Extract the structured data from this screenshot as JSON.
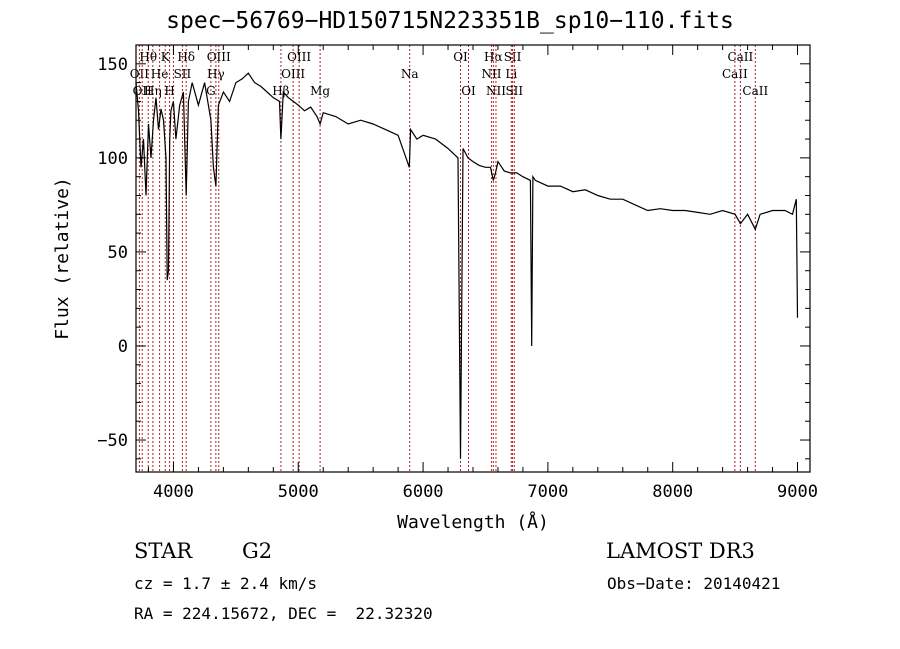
{
  "header": {
    "title": "spec−56769−HD150715N223351B_sp10−110.fits"
  },
  "info": {
    "object_class": "STAR",
    "subclass": "G2",
    "survey": "LAMOST DR3",
    "redshift": "cz = 1.7 ± 2.4 km/s",
    "obs_date": "Obs−Date: 20140421",
    "coords": "RA = 224.15672, DEC =  22.32320"
  },
  "colors": {
    "spectrum": "#000000",
    "line_markers": "#b22222",
    "axes": "#000000"
  },
  "chart_data": {
    "type": "line",
    "title": "spec−56769−HD150715N223351B_sp10−110.fits",
    "xlabel": "Wavelength (Å)",
    "ylabel": "Flux (relative)",
    "xlim": [
      3700,
      9100
    ],
    "ylim": [
      -67,
      160
    ],
    "xticks": [
      4000,
      5000,
      6000,
      7000,
      8000,
      9000
    ],
    "yticks": [
      -50,
      0,
      50,
      100,
      150
    ],
    "xtick_labels": [
      "4000",
      "5000",
      "6000",
      "7000",
      "8000",
      "9000"
    ],
    "ytick_labels": [
      "−50",
      "0",
      "50",
      "100",
      "150"
    ],
    "grid": false,
    "series": [
      {
        "x": [
          3700,
          3720,
          3740,
          3760,
          3780,
          3800,
          3820,
          3840,
          3860,
          3880,
          3900,
          3920,
          3940,
          3950,
          3960,
          3970,
          3980,
          4000,
          4020,
          4050,
          4080,
          4102,
          4120,
          4150,
          4200,
          4250,
          4300,
          4320,
          4340,
          4360,
          4400,
          4450,
          4500,
          4550,
          4600,
          4650,
          4700,
          4750,
          4800,
          4850,
          4861,
          4880,
          4920,
          4960,
          5000,
          5050,
          5100,
          5150,
          5175,
          5200,
          5300,
          5400,
          5500,
          5600,
          5700,
          5800,
          5890,
          5900,
          5950,
          6000,
          6100,
          6200,
          6280,
          6300,
          6320,
          6360,
          6400,
          6450,
          6500,
          6540,
          6563,
          6580,
          6600,
          6650,
          6700,
          6750,
          6800,
          6860,
          6870,
          6880,
          6900,
          7000,
          7100,
          7200,
          7300,
          7400,
          7500,
          7600,
          7700,
          7800,
          7900,
          8000,
          8100,
          8200,
          8300,
          8400,
          8500,
          8542,
          8600,
          8662,
          8700,
          8800,
          8900,
          8960,
          8990,
          9000
        ],
        "y": [
          140,
          125,
          95,
          110,
          80,
          118,
          100,
          120,
          132,
          115,
          126,
          120,
          100,
          35,
          40,
          110,
          125,
          130,
          110,
          128,
          135,
          80,
          130,
          140,
          128,
          140,
          120,
          95,
          85,
          128,
          135,
          130,
          140,
          142,
          145,
          140,
          138,
          135,
          132,
          130,
          110,
          135,
          132,
          130,
          128,
          125,
          127,
          122,
          118,
          124,
          122,
          118,
          120,
          118,
          115,
          112,
          95,
          115,
          110,
          112,
          110,
          105,
          100,
          -60,
          105,
          100,
          98,
          96,
          95,
          95,
          88,
          92,
          98,
          93,
          92,
          92,
          90,
          88,
          0,
          90,
          88,
          85,
          85,
          82,
          83,
          80,
          78,
          78,
          75,
          72,
          73,
          72,
          72,
          71,
          70,
          72,
          70,
          65,
          70,
          62,
          70,
          72,
          72,
          70,
          78,
          15
        ]
      }
    ],
    "lines": [
      {
        "wl": 3727,
        "label": "OII",
        "row": 2
      },
      {
        "wl": 3750,
        "label": "OII",
        "row": 3
      },
      {
        "wl": 3798,
        "label": "Hθ",
        "row": 1
      },
      {
        "wl": 3835,
        "label": "Hη",
        "row": 3
      },
      {
        "wl": 3889,
        "label": "He",
        "row": 2
      },
      {
        "wl": 3934,
        "label": "K",
        "row": 1
      },
      {
        "wl": 3969,
        "label": "H",
        "row": 3
      },
      {
        "wl": 4000,
        "label": "",
        "row": 0
      },
      {
        "wl": 4072,
        "label": "SII",
        "row": 2
      },
      {
        "wl": 4102,
        "label": "Hδ",
        "row": 1
      },
      {
        "wl": 4300,
        "label": "G",
        "row": 3
      },
      {
        "wl": 4340,
        "label": "Hγ",
        "row": 2
      },
      {
        "wl": 4363,
        "label": "OIII",
        "row": 1
      },
      {
        "wl": 4861,
        "label": "Hβ",
        "row": 3
      },
      {
        "wl": 4959,
        "label": "OIII",
        "row": 2
      },
      {
        "wl": 5007,
        "label": "OIII",
        "row": 1
      },
      {
        "wl": 5175,
        "label": "Mg",
        "row": 3
      },
      {
        "wl": 5893,
        "label": "Na",
        "row": 2
      },
      {
        "wl": 6300,
        "label": "OI",
        "row": 1
      },
      {
        "wl": 6364,
        "label": "OI",
        "row": 3
      },
      {
        "wl": 6548,
        "label": "NII",
        "row": 2
      },
      {
        "wl": 6563,
        "label": "Hα",
        "row": 1
      },
      {
        "wl": 6584,
        "label": "NII",
        "row": 3
      },
      {
        "wl": 6707,
        "label": "Li",
        "row": 2
      },
      {
        "wl": 6717,
        "label": "SII",
        "row": 1
      },
      {
        "wl": 6731,
        "label": "SII",
        "row": 3
      },
      {
        "wl": 8498,
        "label": "CaII",
        "row": 2
      },
      {
        "wl": 8542,
        "label": "CaII",
        "row": 1
      },
      {
        "wl": 8662,
        "label": "CaII",
        "row": 3
      }
    ]
  }
}
